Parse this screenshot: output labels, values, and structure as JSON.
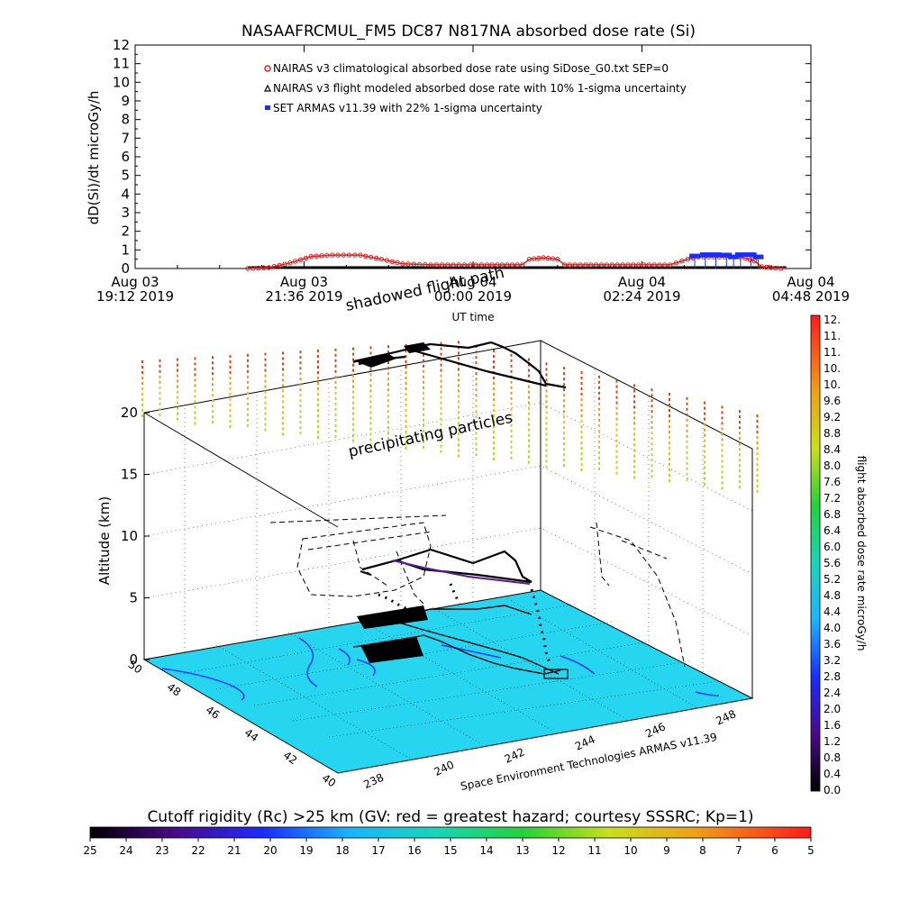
{
  "title": "NASAAFRCMUL_FM5 DC87 N817NA absorbed dose rate (Si)",
  "top_chart": {
    "ylabel": "dD(Si)/dt microGy/h",
    "xlabel": "UT time",
    "ylim": [
      0,
      12
    ],
    "yticks": [
      "0",
      "1",
      "2",
      "3",
      "4",
      "5",
      "6",
      "7",
      "8",
      "9",
      "10",
      "11",
      "12"
    ],
    "xticks": [
      {
        "line1": "Aug 03",
        "line2": "19:12 2019"
      },
      {
        "line1": "Aug 03",
        "line2": "21:36 2019"
      },
      {
        "line1": "Aug 04",
        "line2": "00:00 2019"
      },
      {
        "line1": "Aug 04",
        "line2": "02:24 2019"
      },
      {
        "line1": "Aug 04",
        "line2": "04:48 2019"
      }
    ],
    "legend": [
      {
        "label": "NAIRAS v3 climatological absorbed dose rate using SiDose_G0.txt SEP=0",
        "color": "#e02020",
        "marker": "circle"
      },
      {
        "label": "NAIRAS v3 flight modeled absorbed dose rate with 10% 1-sigma uncertainty",
        "color": "#000000",
        "marker": "triangle"
      },
      {
        "label": "SET ARMAS v11.39 with 22% 1-sigma uncertainty",
        "color": "#1a2cff",
        "marker": "square"
      }
    ]
  },
  "chart_data": [
    {
      "type": "line",
      "title": "NASAAFRCMUL_FM5 DC87 N817NA absorbed dose rate (Si)",
      "xlabel": "UT time",
      "ylabel": "dD(Si)/dt microGy/h",
      "x_unit": "hours after Aug 03 19:12 UT",
      "xlim": [
        0,
        9.6
      ],
      "ylim": [
        0,
        12
      ],
      "series": [
        {
          "name": "NAIRAS v3 climatological absorbed dose rate using SiDose_G0.txt SEP=0",
          "points": [
            [
              1.6,
              0
            ],
            [
              1.9,
              0.05
            ],
            [
              2.2,
              0.3
            ],
            [
              2.5,
              0.65
            ],
            [
              2.8,
              0.72
            ],
            [
              3.2,
              0.72
            ],
            [
              3.5,
              0.5
            ],
            [
              3.8,
              0.25
            ],
            [
              4.2,
              0.2
            ],
            [
              5.0,
              0.2
            ],
            [
              5.5,
              0.2
            ],
            [
              5.6,
              0.5
            ],
            [
              5.8,
              0.58
            ],
            [
              6.0,
              0.5
            ],
            [
              6.1,
              0.2
            ],
            [
              7.0,
              0.2
            ],
            [
              7.6,
              0.2
            ],
            [
              7.85,
              0.5
            ],
            [
              8.0,
              0.62
            ],
            [
              8.6,
              0.62
            ],
            [
              8.8,
              0.4
            ],
            [
              8.9,
              0.1
            ],
            [
              9.1,
              0.02
            ],
            [
              9.25,
              0
            ]
          ]
        },
        {
          "name": "NAIRAS v3 flight modeled absorbed dose rate with 10% 1-sigma uncertainty",
          "points": [
            [
              1.6,
              0
            ],
            [
              9.25,
              0
            ]
          ]
        },
        {
          "name": "SET ARMAS v11.39 with 22% 1-sigma uncertainty",
          "points": [
            [
              7.95,
              0.65
            ],
            [
              8.1,
              0.72
            ],
            [
              8.25,
              0.72
            ],
            [
              8.4,
              0.7
            ],
            [
              8.5,
              0.6
            ],
            [
              8.6,
              0.72
            ],
            [
              8.75,
              0.72
            ],
            [
              8.85,
              0.6
            ]
          ]
        }
      ]
    },
    {
      "type": "scatter",
      "subtype": "3d flight track",
      "ylabel": "Altitude (km)",
      "zlim": [
        0,
        20
      ],
      "zticks": [
        "0",
        "5",
        "10",
        "15",
        "20"
      ],
      "lat_ticks": [
        "50",
        "48",
        "46",
        "44",
        "42",
        "40"
      ],
      "lon_ticks": [
        "238",
        "240",
        "242",
        "244",
        "246",
        "248"
      ],
      "annotations": [
        "shadowed flight path",
        "precipitating particles"
      ],
      "credit": "Space Environment Technologies ARMAS v11.39"
    }
  ],
  "right_colorbar": {
    "label": "flight absorbed dose rate microGy/h",
    "ticks": [
      "12.",
      "11.",
      "11.",
      "10.",
      "10.",
      "9.6",
      "9.2",
      "8.8",
      "8.4",
      "8.0",
      "7.6",
      "7.2",
      "6.8",
      "6.4",
      "6.0",
      "5.6",
      "5.2",
      "4.8",
      "4.4",
      "4.0",
      "3.6",
      "3.2",
      "2.8",
      "2.4",
      "2.0",
      "1.6",
      "1.2",
      "0.8",
      "0.4",
      "0.0"
    ]
  },
  "bottom_colorbar": {
    "label": "Cutoff rigidity (Rc) >25 km (GV: red = greatest hazard; courtesy SSSRC; Kp=1)",
    "ticks": [
      "25",
      "24",
      "23",
      "22",
      "21",
      "20",
      "19",
      "18",
      "17",
      "16",
      "15",
      "14",
      "13",
      "12",
      "11",
      "10",
      "9",
      "8",
      "7",
      "6",
      "5"
    ]
  },
  "colors": {
    "ground": "#26d6f0",
    "coast": "#2a3cff",
    "track": "#000000",
    "red": "#e02020",
    "blue": "#1a2cff"
  }
}
